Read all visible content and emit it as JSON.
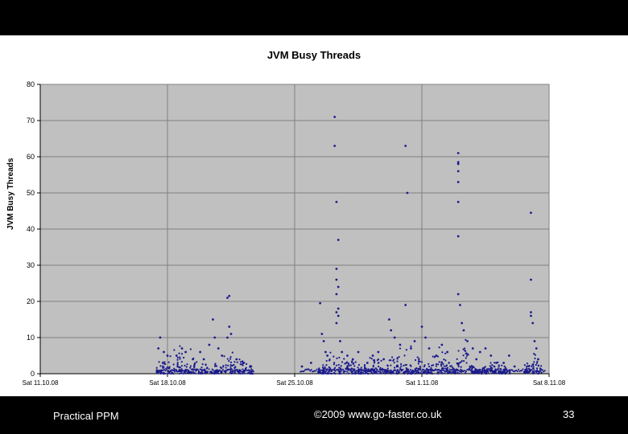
{
  "chart_data": {
    "type": "scatter",
    "title": "JVM Busy Threads",
    "ylabel": "JVM Busy Threads",
    "xlabel": "",
    "ylim": [
      0,
      80
    ],
    "yticks": [
      "0",
      "10",
      "20",
      "30",
      "40",
      "50",
      "60",
      "70",
      "80"
    ],
    "xlim_days": [
      0,
      28
    ],
    "xticks": [
      "Sat 11.10.08",
      "Sat 18.10.08",
      "Sat 25.10.08",
      "Sat 1.11.08",
      "Sat 8.11.08"
    ],
    "grid": true,
    "marker_color": "#1a1a8c",
    "plot_bg": "#c0c0c0",
    "series": [
      {
        "values": [
          [
            6.6,
            10
          ],
          [
            6.5,
            7
          ],
          [
            6.8,
            6
          ],
          [
            7.0,
            5
          ],
          [
            7.5,
            5
          ],
          [
            7.8,
            7
          ],
          [
            8.0,
            6
          ],
          [
            8.4,
            4
          ],
          [
            8.8,
            6
          ],
          [
            9.0,
            4
          ],
          [
            9.3,
            8
          ],
          [
            9.5,
            15
          ],
          [
            9.6,
            10
          ],
          [
            9.8,
            7
          ],
          [
            10.0,
            5
          ],
          [
            10.3,
            10
          ],
          [
            10.4,
            13
          ],
          [
            10.5,
            11
          ],
          [
            10.3,
            21
          ],
          [
            10.4,
            21.5
          ],
          [
            10.8,
            4
          ],
          [
            11.2,
            3
          ],
          [
            11.6,
            2
          ],
          [
            14.4,
            2
          ],
          [
            14.9,
            3
          ],
          [
            15.4,
            19.5
          ],
          [
            15.5,
            11
          ],
          [
            15.6,
            9
          ],
          [
            15.7,
            6
          ],
          [
            15.8,
            5
          ],
          [
            16.2,
            71
          ],
          [
            16.2,
            63
          ],
          [
            16.3,
            47.5
          ],
          [
            16.4,
            37
          ],
          [
            16.3,
            29
          ],
          [
            16.3,
            26
          ],
          [
            16.4,
            24
          ],
          [
            16.3,
            22
          ],
          [
            16.4,
            18
          ],
          [
            16.3,
            17
          ],
          [
            16.4,
            16
          ],
          [
            16.3,
            14
          ],
          [
            16.5,
            9
          ],
          [
            16.6,
            6
          ],
          [
            16.9,
            5
          ],
          [
            17.2,
            4
          ],
          [
            17.5,
            6
          ],
          [
            18.0,
            3
          ],
          [
            18.3,
            5
          ],
          [
            18.6,
            6
          ],
          [
            18.9,
            4
          ],
          [
            19.2,
            15
          ],
          [
            19.3,
            12
          ],
          [
            19.5,
            10
          ],
          [
            19.8,
            8
          ],
          [
            20.1,
            63
          ],
          [
            20.2,
            50
          ],
          [
            20.1,
            19
          ],
          [
            20.4,
            7
          ],
          [
            20.6,
            9
          ],
          [
            21.0,
            13
          ],
          [
            21.2,
            10
          ],
          [
            21.4,
            7
          ],
          [
            21.8,
            5
          ],
          [
            22.1,
            8
          ],
          [
            22.4,
            6
          ],
          [
            23.0,
            61
          ],
          [
            23.0,
            58.5
          ],
          [
            23.0,
            58
          ],
          [
            23.0,
            56
          ],
          [
            23.0,
            53
          ],
          [
            23.0,
            47.5
          ],
          [
            23.0,
            38
          ],
          [
            23.0,
            22
          ],
          [
            23.1,
            19
          ],
          [
            23.2,
            14
          ],
          [
            23.3,
            12
          ],
          [
            23.5,
            9
          ],
          [
            23.8,
            7
          ],
          [
            24.0,
            4
          ],
          [
            24.2,
            6
          ],
          [
            24.5,
            7
          ],
          [
            24.8,
            5
          ],
          [
            25.1,
            3
          ],
          [
            25.5,
            3
          ],
          [
            25.8,
            5
          ],
          [
            26.1,
            2
          ],
          [
            27.0,
            44.5
          ],
          [
            27.0,
            26
          ],
          [
            27.0,
            17
          ],
          [
            27.0,
            16
          ],
          [
            27.1,
            14
          ],
          [
            27.2,
            9
          ],
          [
            27.3,
            7
          ],
          [
            27.4,
            4
          ]
        ]
      }
    ]
  },
  "footer": {
    "left": "Practical PPM",
    "center": "©2009 www.go-faster.co.uk",
    "right": "33"
  }
}
